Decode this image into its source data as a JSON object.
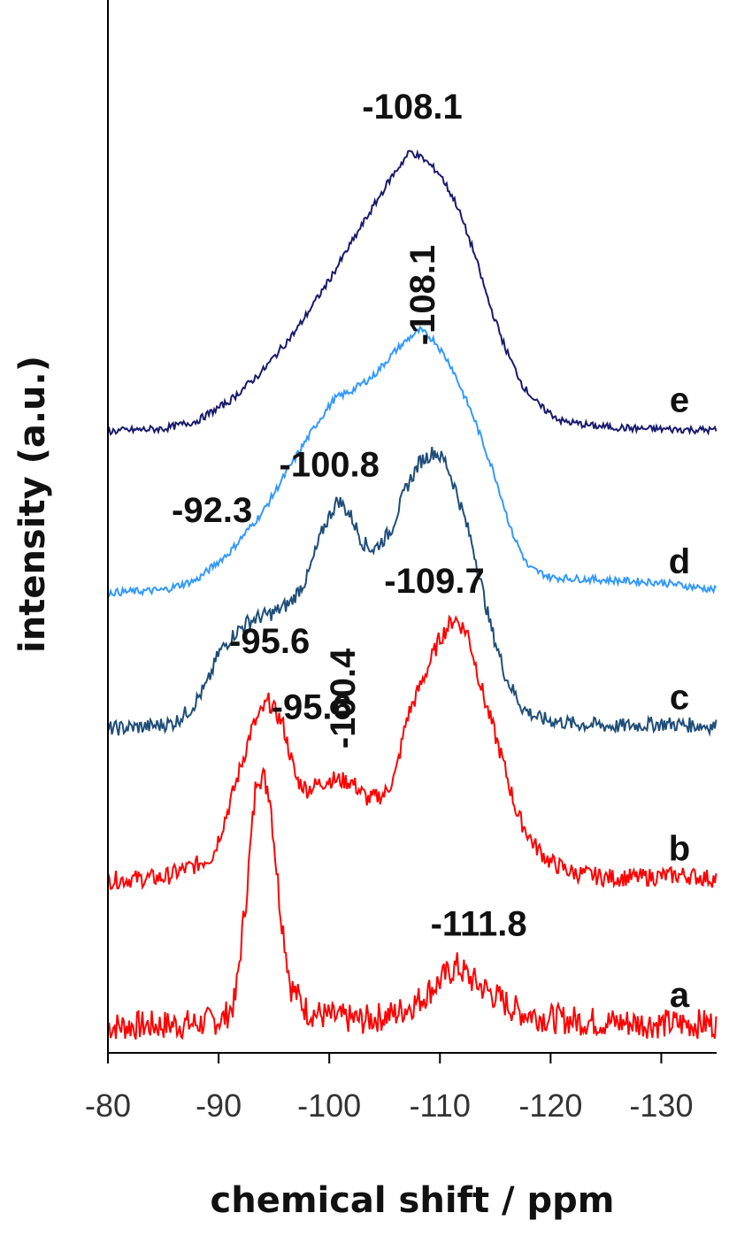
{
  "chart_data": {
    "type": "line",
    "xlabel": "chemical shift / ppm",
    "ylabel": "intensity (a.u.)",
    "xlim": [
      -80,
      -135
    ],
    "xticks": [
      -80,
      -90,
      -100,
      -110,
      -120,
      -130
    ],
    "grid": false,
    "legend": "none",
    "series": [
      {
        "name": "a",
        "color": "#ff0000",
        "noise": 0.05,
        "offset": 0,
        "points": [
          [
            -80,
            0
          ],
          [
            -84,
            0.02
          ],
          [
            -88,
            0.05
          ],
          [
            -90.5,
            0.15
          ],
          [
            -91.5,
            0.5
          ],
          [
            -92.5,
            2.6
          ],
          [
            -93.5,
            5.1
          ],
          [
            -94.6,
            4.7
          ],
          [
            -95.5,
            2.5
          ],
          [
            -96.5,
            0.8
          ],
          [
            -98,
            0.3
          ],
          [
            -100,
            0.18
          ],
          [
            -103,
            0.12
          ],
          [
            -106,
            0.25
          ],
          [
            -108,
            0.5
          ],
          [
            -110,
            0.9
          ],
          [
            -111.5,
            1.2
          ],
          [
            -113,
            0.9
          ],
          [
            -115,
            0.6
          ],
          [
            -117,
            0.3
          ],
          [
            -120,
            0.15
          ],
          [
            -125,
            0.08
          ],
          [
            -130,
            0.05
          ],
          [
            -135,
            0.05
          ]
        ]
      },
      {
        "name": "b",
        "color": "#ff0000",
        "noise": 0.03,
        "offset": 2.9,
        "points": [
          [
            -80,
            0
          ],
          [
            -85,
            0.05
          ],
          [
            -88,
            0.3
          ],
          [
            -89.5,
            0.5
          ],
          [
            -91,
            1.5
          ],
          [
            -93,
            3.0
          ],
          [
            -94.5,
            3.55
          ],
          [
            -95.8,
            3.1
          ],
          [
            -97,
            2.0
          ],
          [
            -98,
            1.8
          ],
          [
            -100,
            2.0
          ],
          [
            -102,
            1.95
          ],
          [
            -103.5,
            1.6
          ],
          [
            -105,
            1.7
          ],
          [
            -106,
            2.1
          ],
          [
            -107,
            3.2
          ],
          [
            -108.5,
            4.0
          ],
          [
            -110,
            4.8
          ],
          [
            -111.3,
            5.2
          ],
          [
            -112.5,
            4.9
          ],
          [
            -114,
            3.6
          ],
          [
            -115.5,
            2.5
          ],
          [
            -117,
            1.3
          ],
          [
            -118.5,
            0.7
          ],
          [
            -120,
            0.35
          ],
          [
            -122,
            0.15
          ],
          [
            -125,
            0.05
          ],
          [
            -128,
            0.05
          ],
          [
            -132,
            0.1
          ],
          [
            -135,
            0.02
          ]
        ]
      },
      {
        "name": "c",
        "color": "#1f4e79",
        "noise": 0.025,
        "offset": 5.9,
        "points": [
          [
            -80,
            0
          ],
          [
            -84,
            0.05
          ],
          [
            -86,
            0.12
          ],
          [
            -87.5,
            0.4
          ],
          [
            -89,
            0.9
          ],
          [
            -90,
            1.5
          ],
          [
            -91.5,
            1.9
          ],
          [
            -92.5,
            2.1
          ],
          [
            -93.5,
            2.2
          ],
          [
            -95,
            2.3
          ],
          [
            -96.5,
            2.5
          ],
          [
            -98,
            3.0
          ],
          [
            -99.5,
            4.0
          ],
          [
            -100.8,
            4.55
          ],
          [
            -102,
            4.2
          ],
          [
            -103,
            3.7
          ],
          [
            -104,
            3.55
          ],
          [
            -105.5,
            3.9
          ],
          [
            -107,
            4.8
          ],
          [
            -108.2,
            5.3
          ],
          [
            -109.5,
            5.5
          ],
          [
            -110.5,
            5.3
          ],
          [
            -111.5,
            4.7
          ],
          [
            -113,
            3.6
          ],
          [
            -114.5,
            2.1
          ],
          [
            -116,
            1.0
          ],
          [
            -117.5,
            0.4
          ],
          [
            -119,
            0.2
          ],
          [
            -122,
            0.1
          ],
          [
            -126,
            0.05
          ],
          [
            -130,
            0.1
          ],
          [
            -135,
            0.05
          ]
        ]
      },
      {
        "name": "d",
        "color": "#3399ff",
        "noise": 0.012,
        "offset": 8.6,
        "points": [
          [
            -80,
            0
          ],
          [
            -85,
            0.05
          ],
          [
            -88,
            0.25
          ],
          [
            -91,
            0.8
          ],
          [
            -94,
            1.6
          ],
          [
            -97,
            2.7
          ],
          [
            -99,
            3.4
          ],
          [
            -100.5,
            3.85
          ],
          [
            -102,
            4.0
          ],
          [
            -104,
            4.3
          ],
          [
            -106,
            4.8
          ],
          [
            -107.5,
            5.1
          ],
          [
            -108.2,
            5.2
          ],
          [
            -109.5,
            5.0
          ],
          [
            -111,
            4.5
          ],
          [
            -113,
            3.5
          ],
          [
            -115,
            2.3
          ],
          [
            -116.5,
            1.2
          ],
          [
            -118,
            0.5
          ],
          [
            -120,
            0.3
          ],
          [
            -125,
            0.25
          ],
          [
            -130,
            0.2
          ],
          [
            -135,
            0.05
          ]
        ]
      },
      {
        "name": "e",
        "color": "#1a1a6e",
        "noise": 0.012,
        "offset": 11.8,
        "points": [
          [
            -80,
            0
          ],
          [
            -85,
            0.05
          ],
          [
            -88,
            0.2
          ],
          [
            -91,
            0.6
          ],
          [
            -94,
            1.2
          ],
          [
            -97,
            2.0
          ],
          [
            -100,
            3.0
          ],
          [
            -103,
            4.1
          ],
          [
            -105.5,
            5.0
          ],
          [
            -107.3,
            5.55
          ],
          [
            -108.5,
            5.4
          ],
          [
            -110,
            5.1
          ],
          [
            -111.5,
            4.5
          ],
          [
            -113,
            3.6
          ],
          [
            -114.5,
            2.5
          ],
          [
            -116,
            1.6
          ],
          [
            -117.5,
            0.9
          ],
          [
            -119,
            0.5
          ],
          [
            -121,
            0.2
          ],
          [
            -124,
            0.1
          ],
          [
            -128,
            0.05
          ],
          [
            -135,
            0.02
          ]
        ]
      }
    ],
    "annotations": [
      {
        "text": "-95.6",
        "x": -98.4,
        "y": 6.1,
        "rotate": 0
      },
      {
        "text": "-111.8",
        "x": -113.5,
        "y": 1.8,
        "rotate": 0
      },
      {
        "text": "-95.6",
        "x": -94.6,
        "y": 7.4,
        "rotate": 0
      },
      {
        "text": "-100.4",
        "x": -102.3,
        "y": 6.5,
        "rotate": -90
      },
      {
        "text": "-109.7",
        "x": -109.5,
        "y": 8.6,
        "rotate": 0
      },
      {
        "text": "-92.3",
        "x": -89.4,
        "y": 10.0,
        "rotate": 0
      },
      {
        "text": "-100.8",
        "x": -100.0,
        "y": 10.9,
        "rotate": 0
      },
      {
        "text": "-108.1",
        "x": -109.5,
        "y": 14.5,
        "rotate": -90
      },
      {
        "text": "-108.1",
        "x": -107.5,
        "y": 18.0,
        "rotate": 0
      }
    ],
    "trace_labels": [
      {
        "text": "a",
        "series": "a"
      },
      {
        "text": "b",
        "series": "b"
      },
      {
        "text": "c",
        "series": "c"
      },
      {
        "text": "d",
        "series": "d"
      },
      {
        "text": "e",
        "series": "e"
      }
    ]
  }
}
